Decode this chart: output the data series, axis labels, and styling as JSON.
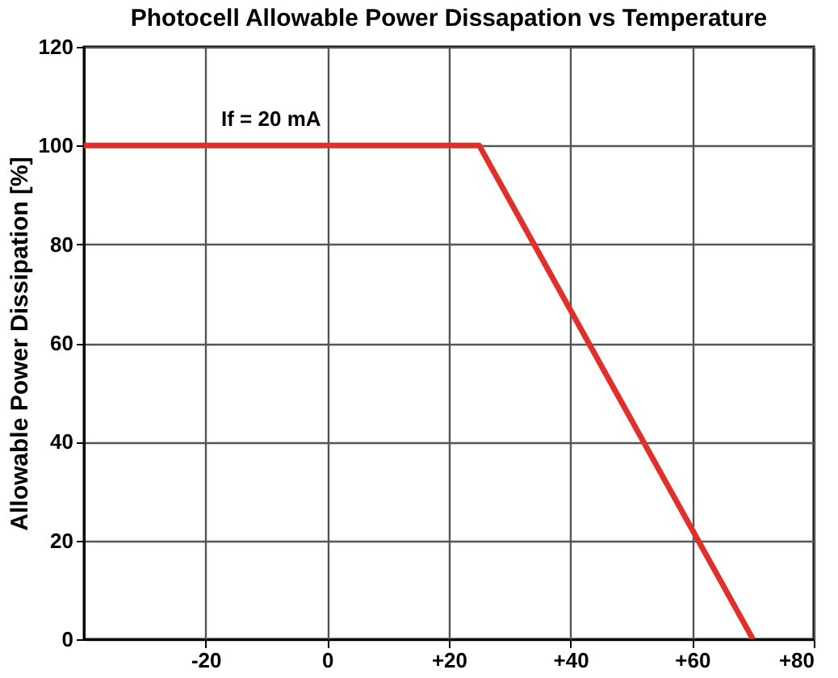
{
  "chart_data": {
    "type": "line",
    "title": "Photocell Allowable Power Dissapation vs Temperature",
    "ylabel": "Allowable Power Dissipation [%]",
    "x": [
      -40,
      25,
      70
    ],
    "series": [
      {
        "color": "#e0302a",
        "values": [
          100,
          100,
          0
        ]
      }
    ],
    "xlim": [
      -40,
      80
    ],
    "xticks": [
      {
        "value": -20,
        "label": "-20"
      },
      0,
      {
        "value": 20,
        "label": "+20"
      },
      {
        "value": 40,
        "label": "+40"
      },
      {
        "value": 60,
        "label": "+60"
      },
      {
        "value": 80,
        "label": "+80"
      }
    ],
    "ylim": [
      0,
      120
    ],
    "yticks": [
      0,
      20,
      40,
      60,
      80,
      100,
      120
    ],
    "grid": true,
    "marker": "none",
    "line_style": "solid",
    "annotations": [
      "If = 20 mA"
    ]
  }
}
